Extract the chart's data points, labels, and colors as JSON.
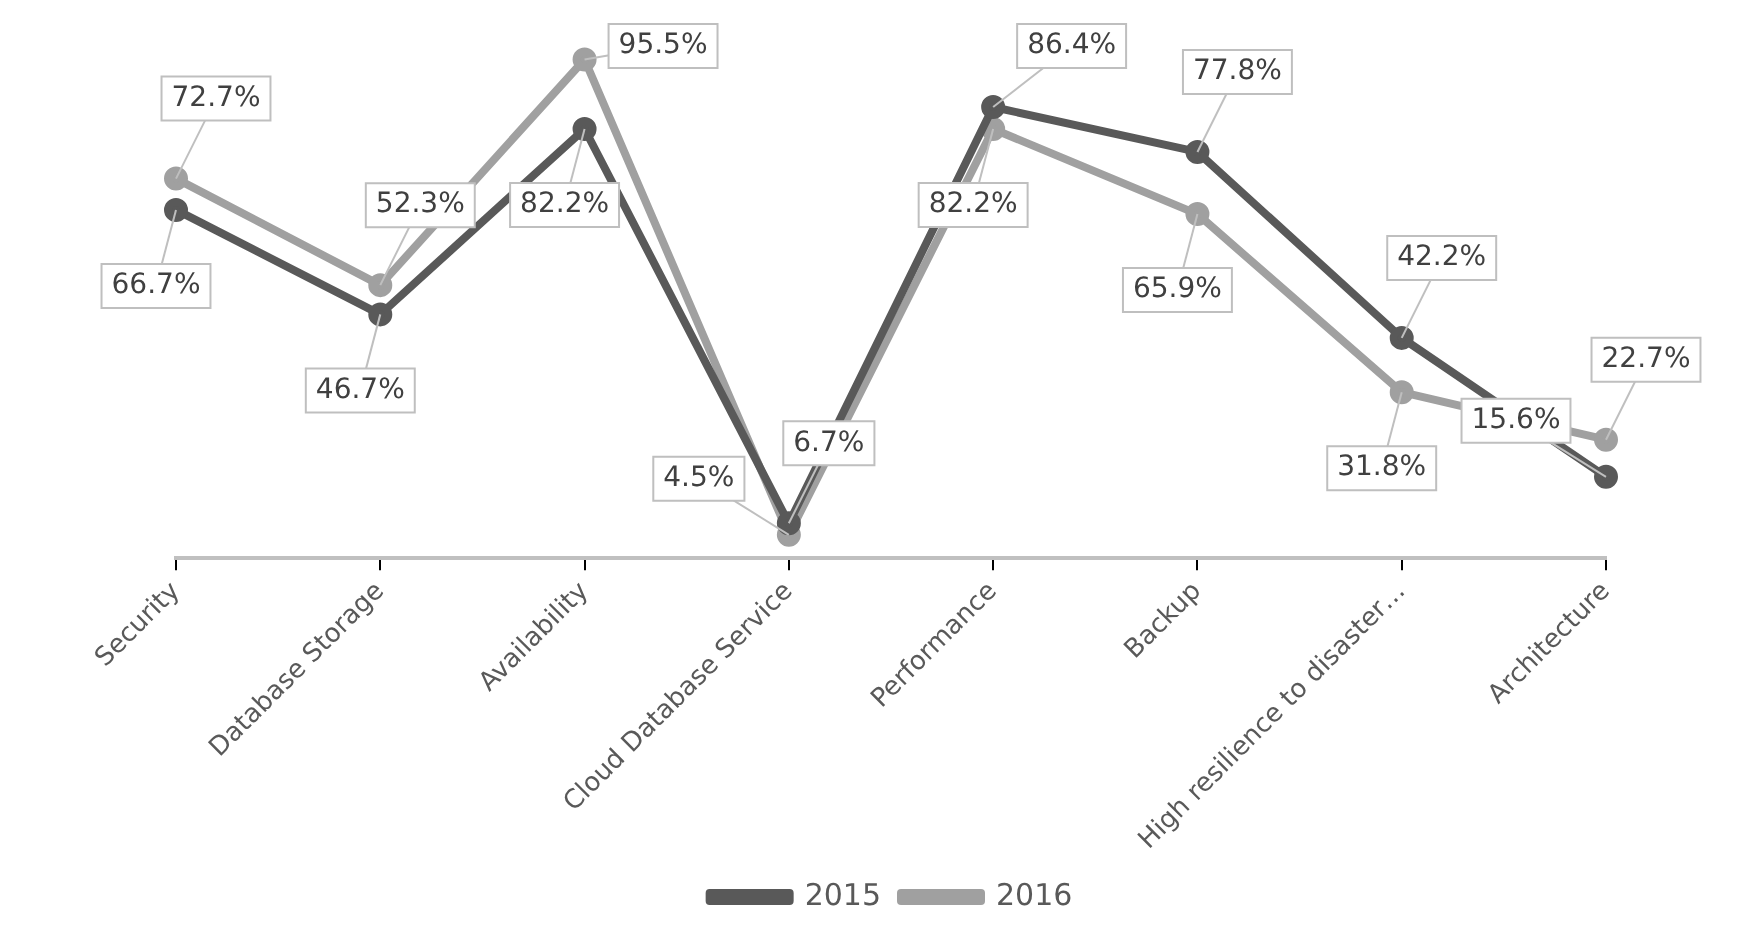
{
  "chart_data": {
    "type": "line",
    "categories": [
      "Security",
      "Database Storage",
      "Availability",
      "Cloud Database Service",
      "Performance",
      "Backup",
      "High resilience to disaster…",
      "Architecture"
    ],
    "series": [
      {
        "name": "2015",
        "color": "#595959",
        "values": [
          66.7,
          46.7,
          82.2,
          6.7,
          86.4,
          77.8,
          42.2,
          15.6
        ],
        "value_labels": [
          "66.7%",
          "46.7%",
          "82.2%",
          "6.7%",
          "86.4%",
          "77.8%",
          "42.2%",
          "15.6%"
        ]
      },
      {
        "name": "2016",
        "color": "#a0a0a0",
        "values": [
          72.7,
          52.3,
          95.5,
          4.5,
          82.2,
          65.9,
          31.8,
          22.7
        ],
        "value_labels": [
          "72.7%",
          "52.3%",
          "95.5%",
          "4.5%",
          "82.2%",
          "65.9%",
          "31.8%",
          "22.7%"
        ]
      }
    ],
    "legend": "bottom",
    "marker": "circle",
    "grid": false
  }
}
